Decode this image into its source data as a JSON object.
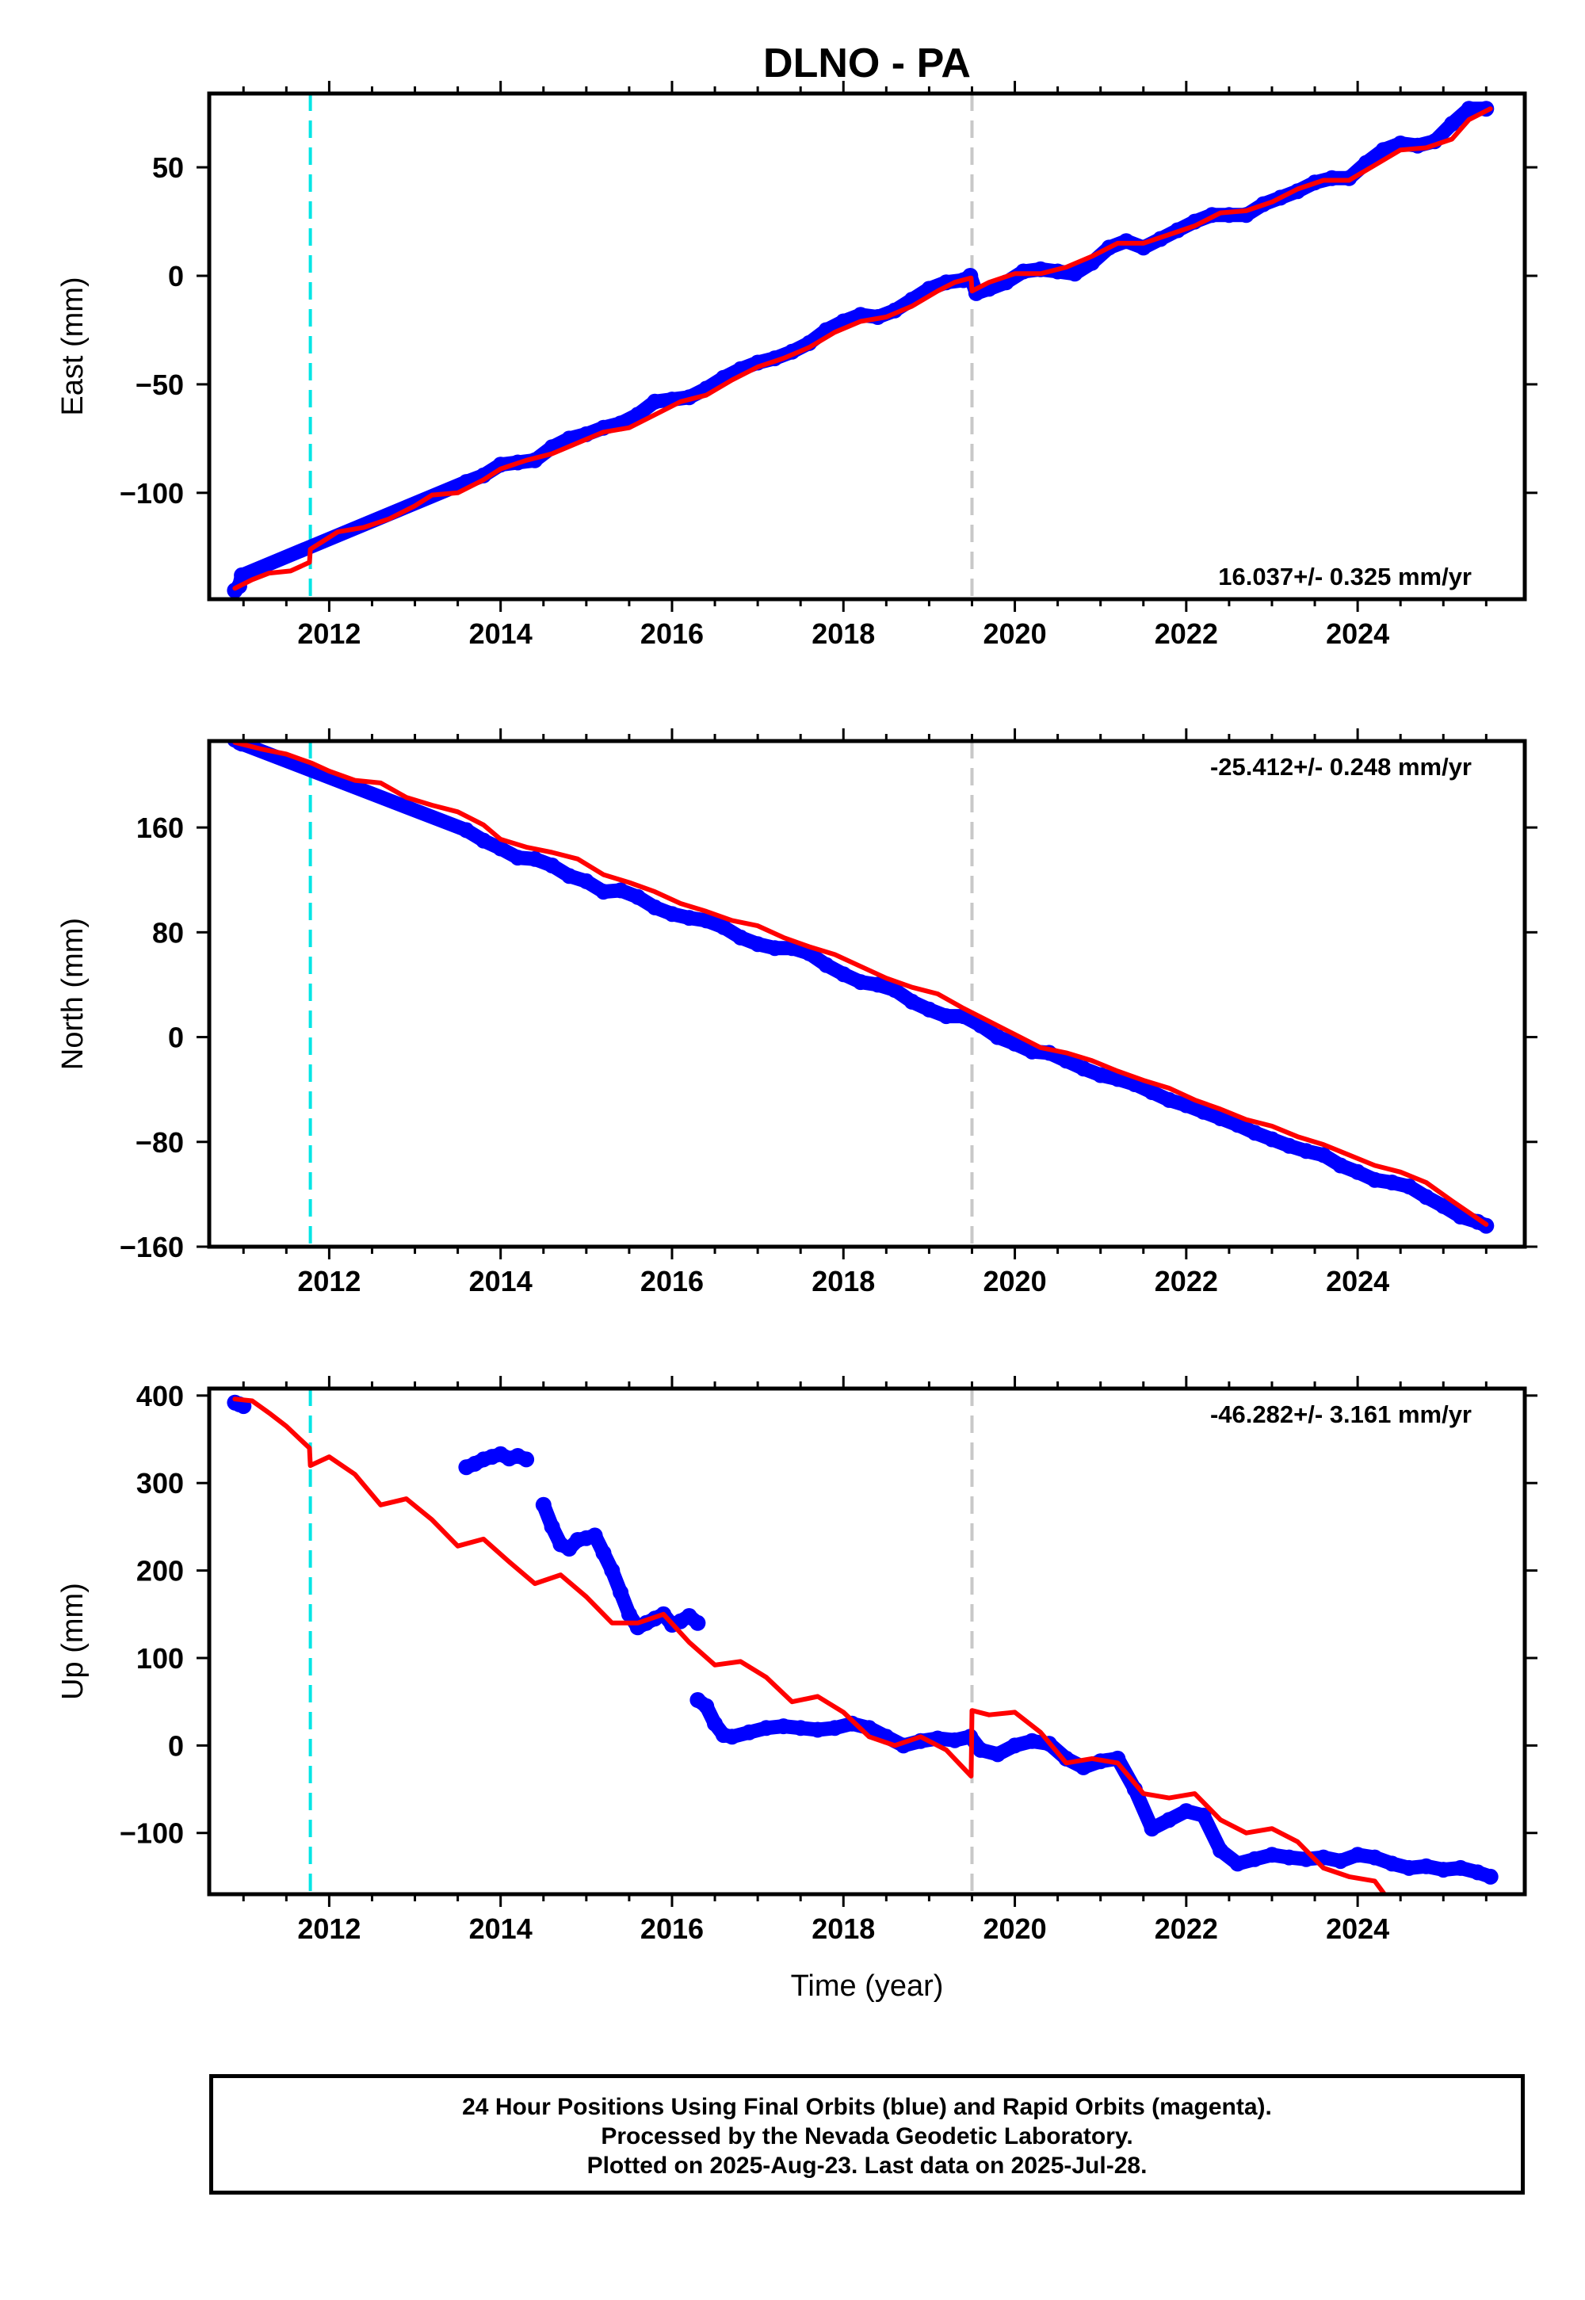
{
  "chart_data": [
    {
      "type": "scatter",
      "title": "DLNO - PA",
      "ylabel": "East (mm)",
      "xlabel": "",
      "xlim": [
        2010.6,
        2025.95
      ],
      "ylim": [
        -149,
        84
      ],
      "xticks": [
        2012,
        2014,
        2016,
        2018,
        2020,
        2022,
        2024
      ],
      "yticks": [
        -100,
        -50,
        0,
        50
      ],
      "ytick_labels": [
        "−100",
        "−50",
        "0",
        "50"
      ],
      "rate_label": "16.037+/- 0.325 mm/yr",
      "rate_position": "bottom-right",
      "vlines": [
        {
          "x": 2011.78,
          "color": "#00e5e5",
          "style": "dashed"
        },
        {
          "x": 2019.5,
          "color": "#c8c8c8",
          "style": "dashed"
        }
      ],
      "series": [
        {
          "color": "#0000ff",
          "marker": "dots",
          "x": [
            2010.9,
            2010.95,
            2010.98,
            2013.6,
            2013.8,
            2014.0,
            2014.2,
            2014.4,
            2014.6,
            2014.8,
            2015.0,
            2015.2,
            2015.4,
            2015.6,
            2015.8,
            2016.0,
            2016.2,
            2016.4,
            2016.6,
            2016.8,
            2017.0,
            2017.2,
            2017.4,
            2017.6,
            2017.8,
            2018.0,
            2018.2,
            2018.4,
            2018.6,
            2018.8,
            2019.0,
            2019.2,
            2019.4,
            2019.48,
            2019.55,
            2019.7,
            2019.9,
            2020.1,
            2020.3,
            2020.5,
            2020.7,
            2020.9,
            2021.1,
            2021.3,
            2021.5,
            2021.7,
            2021.9,
            2022.1,
            2022.3,
            2022.5,
            2022.7,
            2022.9,
            2023.1,
            2023.3,
            2023.5,
            2023.7,
            2023.9,
            2024.1,
            2024.3,
            2024.5,
            2024.7,
            2024.9,
            2025.1,
            2025.3,
            2025.5
          ],
          "y": [
            -145,
            -143,
            -138,
            -95,
            -92,
            -87,
            -86,
            -85,
            -79,
            -75,
            -73,
            -70,
            -68,
            -64,
            -58,
            -57,
            -56,
            -52,
            -47,
            -43,
            -40,
            -38,
            -35,
            -31,
            -25,
            -21,
            -18,
            -19,
            -16,
            -11,
            -6,
            -3,
            -2,
            0,
            -8,
            -6,
            -3,
            2,
            3,
            2,
            1,
            6,
            13,
            16,
            13,
            17,
            21,
            25,
            28,
            28,
            28,
            33,
            36,
            39,
            43,
            45,
            45,
            52,
            58,
            61,
            60,
            62,
            70,
            77,
            77
          ]
        },
        {
          "color": "#ff0000",
          "marker": "line",
          "x": [
            2010.9,
            2011.1,
            2011.3,
            2011.55,
            2011.77,
            2011.78,
            2011.9,
            2012.1,
            2012.4,
            2012.7,
            2013.0,
            2013.2,
            2013.5,
            2013.8,
            2014.0,
            2014.3,
            2014.6,
            2014.9,
            2015.2,
            2015.5,
            2015.8,
            2016.1,
            2016.4,
            2016.7,
            2017.0,
            2017.3,
            2017.6,
            2017.9,
            2018.2,
            2018.5,
            2018.8,
            2019.1,
            2019.3,
            2019.49,
            2019.5,
            2019.7,
            2020.0,
            2020.3,
            2020.6,
            2020.9,
            2021.2,
            2021.5,
            2021.8,
            2022.1,
            2022.4,
            2022.7,
            2023.0,
            2023.3,
            2023.6,
            2023.9,
            2024.2,
            2024.5,
            2024.8,
            2025.1,
            2025.3,
            2025.55
          ],
          "y": [
            -144,
            -140,
            -137,
            -136,
            -132,
            -126,
            -123,
            -118,
            -116,
            -112,
            -106,
            -101,
            -100,
            -94,
            -89,
            -85,
            -82,
            -77,
            -72,
            -70,
            -64,
            -58,
            -55,
            -48,
            -42,
            -38,
            -33,
            -26,
            -21,
            -19,
            -14,
            -7,
            -3,
            -1,
            -7,
            -3,
            1,
            1,
            4,
            9,
            15,
            15,
            19,
            23,
            29,
            30,
            34,
            40,
            44,
            44,
            51,
            58,
            59,
            63,
            72,
            77
          ]
        }
      ]
    },
    {
      "type": "scatter",
      "title": "",
      "ylabel": "North (mm)",
      "xlabel": "",
      "xlim": [
        2010.6,
        2025.95
      ],
      "ylim": [
        -160,
        226
      ],
      "xticks": [
        2012,
        2014,
        2016,
        2018,
        2020,
        2022,
        2024
      ],
      "yticks": [
        -160,
        -80,
        0,
        80,
        160
      ],
      "ytick_labels": [
        "−160",
        "−80",
        "0",
        "80",
        "160"
      ],
      "rate_label": "-25.412+/- 0.248 mm/yr",
      "rate_position": "top-right",
      "vlines": [
        {
          "x": 2011.78,
          "color": "#00e5e5",
          "style": "dashed"
        },
        {
          "x": 2019.5,
          "color": "#c8c8c8",
          "style": "dashed"
        }
      ],
      "series": [
        {
          "color": "#0000ff",
          "marker": "dots",
          "x": [
            2010.9,
            2010.95,
            2010.98,
            2013.6,
            2013.8,
            2014.0,
            2014.2,
            2014.4,
            2014.6,
            2014.8,
            2015.0,
            2015.2,
            2015.4,
            2015.6,
            2015.8,
            2016.0,
            2016.2,
            2016.4,
            2016.6,
            2016.8,
            2017.0,
            2017.2,
            2017.4,
            2017.6,
            2017.8,
            2018.0,
            2018.2,
            2018.4,
            2018.6,
            2018.8,
            2019.0,
            2019.2,
            2019.4,
            2019.6,
            2019.8,
            2020.0,
            2020.2,
            2020.4,
            2020.6,
            2020.8,
            2021.0,
            2021.2,
            2021.4,
            2021.6,
            2021.8,
            2022.0,
            2022.2,
            2022.4,
            2022.6,
            2022.8,
            2023.0,
            2023.2,
            2023.4,
            2023.6,
            2023.8,
            2024.0,
            2024.2,
            2024.4,
            2024.6,
            2024.8,
            2025.0,
            2025.2,
            2025.4,
            2025.5
          ],
          "y": [
            227,
            225,
            224,
            158,
            150,
            144,
            137,
            136,
            131,
            123,
            119,
            111,
            112,
            107,
            99,
            94,
            91,
            89,
            84,
            76,
            71,
            68,
            68,
            64,
            55,
            48,
            42,
            40,
            36,
            27,
            21,
            16,
            16,
            9,
            0,
            -5,
            -11,
            -12,
            -18,
            -24,
            -29,
            -32,
            -36,
            -42,
            -48,
            -52,
            -57,
            -62,
            -67,
            -73,
            -78,
            -83,
            -87,
            -90,
            -98,
            -103,
            -109,
            -111,
            -114,
            -122,
            -129,
            -137,
            -141,
            -144
          ]
        },
        {
          "color": "#ff0000",
          "marker": "line",
          "x": [
            2010.9,
            2011.2,
            2011.5,
            2011.8,
            2012.0,
            2012.3,
            2012.6,
            2012.9,
            2013.2,
            2013.5,
            2013.8,
            2014.0,
            2014.3,
            2014.6,
            2014.9,
            2015.2,
            2015.5,
            2015.8,
            2016.1,
            2016.4,
            2016.7,
            2017.0,
            2017.3,
            2017.6,
            2017.9,
            2018.2,
            2018.5,
            2018.8,
            2019.1,
            2019.4,
            2019.7,
            2020.0,
            2020.3,
            2020.6,
            2020.9,
            2021.2,
            2021.5,
            2021.8,
            2022.1,
            2022.4,
            2022.7,
            2023.0,
            2023.3,
            2023.6,
            2023.9,
            2024.2,
            2024.5,
            2024.8,
            2025.1,
            2025.3,
            2025.5
          ],
          "y": [
            225,
            220,
            216,
            209,
            203,
            196,
            194,
            183,
            177,
            172,
            162,
            151,
            145,
            141,
            136,
            124,
            118,
            111,
            102,
            96,
            89,
            85,
            76,
            69,
            63,
            54,
            45,
            38,
            33,
            22,
            12,
            2,
            -8,
            -12,
            -18,
            -26,
            -33,
            -39,
            -48,
            -55,
            -63,
            -68,
            -76,
            -82,
            -90,
            -98,
            -103,
            -111,
            -125,
            -134,
            -143
          ]
        }
      ]
    },
    {
      "type": "scatter",
      "title": "",
      "ylabel": "Up (mm)",
      "xlabel": "Time (year)",
      "xlim": [
        2010.6,
        2025.95
      ],
      "ylim": [
        -170,
        408
      ],
      "xticks": [
        2012,
        2014,
        2016,
        2018,
        2020,
        2022,
        2024
      ],
      "yticks": [
        -100,
        0,
        100,
        200,
        300,
        400
      ],
      "ytick_labels": [
        "−100",
        "0",
        "100",
        "200",
        "300",
        "400"
      ],
      "rate_label": "-46.282+/- 3.161 mm/yr",
      "rate_position": "top-right",
      "vlines": [
        {
          "x": 2011.78,
          "color": "#00e5e5",
          "style": "dashed"
        },
        {
          "x": 2019.5,
          "color": "#c8c8c8",
          "style": "dashed"
        }
      ],
      "series": [
        {
          "color": "#0000ff",
          "marker": "dots",
          "x": [
            2010.9,
            2010.95,
            2011.0,
            null,
            2013.6,
            2013.7,
            2013.8,
            2013.9,
            2014.0,
            2014.1,
            2014.2,
            2014.3,
            null,
            2014.5,
            2014.6,
            2014.7,
            2014.8,
            2014.9,
            2015.0,
            2015.1,
            2015.2,
            2015.3,
            2015.4,
            2015.5,
            2015.6,
            2015.7,
            2015.8,
            2015.9,
            2016.0,
            2016.1,
            2016.2,
            2016.3,
            null,
            2016.3,
            2016.4,
            2016.5,
            2016.6,
            2016.7,
            2016.9,
            2017.1,
            2017.3,
            2017.5,
            2017.7,
            2017.9,
            2018.1,
            2018.3,
            2018.5,
            2018.7,
            2018.9,
            2019.1,
            2019.3,
            2019.48,
            2019.6,
            2019.8,
            2020.0,
            2020.2,
            2020.4,
            2020.6,
            2020.8,
            2021.0,
            2021.2,
            2021.4,
            2021.6,
            2021.8,
            2022.0,
            2022.2,
            2022.4,
            2022.6,
            2022.8,
            2023.0,
            2023.2,
            2023.4,
            2023.6,
            2023.8,
            2024.0,
            2024.2,
            2024.4,
            2024.6,
            2024.8,
            2025.0,
            2025.2,
            2025.4,
            2025.55
          ],
          "y": [
            392,
            390,
            388,
            null,
            318,
            322,
            327,
            330,
            333,
            328,
            331,
            327,
            null,
            275,
            250,
            230,
            225,
            235,
            237,
            240,
            220,
            200,
            175,
            150,
            135,
            140,
            145,
            150,
            138,
            142,
            148,
            140,
            null,
            52,
            45,
            25,
            12,
            10,
            15,
            20,
            22,
            20,
            18,
            20,
            25,
            20,
            10,
            0,
            5,
            8,
            6,
            10,
            -5,
            -10,
            0,
            5,
            2,
            -15,
            -25,
            -18,
            -15,
            -50,
            -95,
            -85,
            -75,
            -80,
            -120,
            -135,
            -130,
            -125,
            -128,
            -130,
            -128,
            -132,
            -125,
            -128,
            -135,
            -140,
            -138,
            -142,
            -140,
            -145,
            -150
          ]
        },
        {
          "color": "#ff0000",
          "marker": "line",
          "x": [
            2010.9,
            2011.1,
            2011.3,
            2011.5,
            2011.77,
            2011.78,
            2012.0,
            2012.3,
            2012.6,
            2012.9,
            2013.2,
            2013.5,
            2013.8,
            2014.1,
            2014.4,
            2014.7,
            2015.0,
            2015.3,
            2015.6,
            2015.9,
            2016.2,
            2016.5,
            2016.8,
            2017.1,
            2017.4,
            2017.7,
            2018.0,
            2018.3,
            2018.6,
            2018.9,
            2019.2,
            2019.49,
            2019.5,
            2019.7,
            2020.0,
            2020.3,
            2020.6,
            2020.9,
            2021.2,
            2021.5,
            2021.8,
            2022.1,
            2022.4,
            2022.7,
            2023.0,
            2023.3,
            2023.6,
            2023.9,
            2024.2,
            2024.35
          ],
          "y": [
            396,
            394,
            380,
            365,
            340,
            320,
            330,
            310,
            275,
            282,
            258,
            228,
            236,
            210,
            185,
            195,
            170,
            140,
            140,
            150,
            118,
            92,
            96,
            78,
            50,
            56,
            38,
            10,
            0,
            10,
            -5,
            -35,
            40,
            35,
            38,
            15,
            -20,
            -15,
            -20,
            -55,
            -60,
            -55,
            -85,
            -100,
            -95,
            -110,
            -140,
            -150,
            -155,
            -175
          ]
        }
      ]
    }
  ],
  "footer": {
    "line1": "24 Hour Positions Using Final Orbits (blue) and Rapid Orbits (magenta).",
    "line2": "Processed by the Nevada Geodetic Laboratory.",
    "line3": "Plotted on 2025-Aug-23. Last data on 2025-Jul-28."
  }
}
